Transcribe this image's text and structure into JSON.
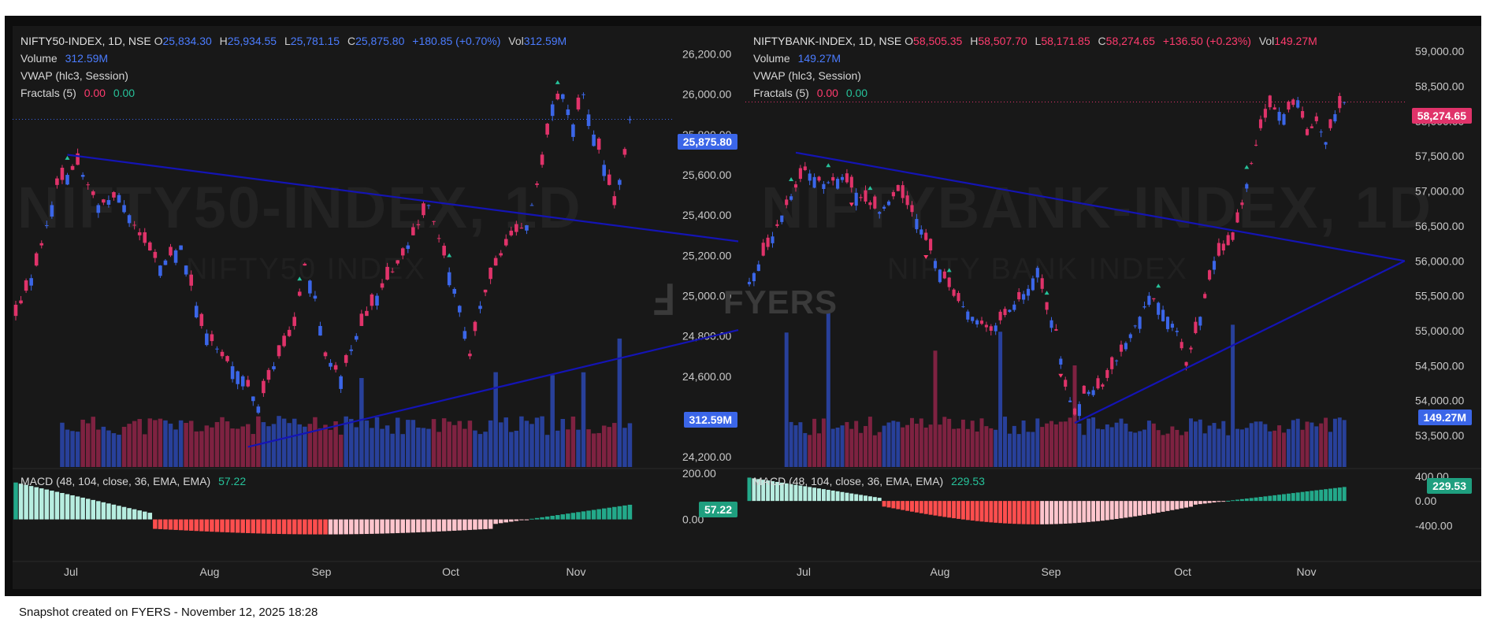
{
  "footer": "Snapshot created on FYERS - November 12, 2025 18:28",
  "logo_text": "FYERS",
  "colors": {
    "bg": "#181818",
    "up": "#3b66e8",
    "down": "#e0336a",
    "trend": "#1414b4",
    "macd_light": "#b7ede0",
    "macd_teal": "#23a98a",
    "macd_red": "#ff4e4e",
    "macd_pink": "#ffc5cd"
  },
  "left": {
    "symbol": "NIFTY50-INDEX, 1D, NSE",
    "watermark": "NIFTY50-INDEX, 1D",
    "watermark_sub": "NIFTY50 INDEX",
    "ohlc": {
      "O": "25,834.30",
      "H": "25,934.55",
      "L": "25,781.15",
      "C": "25,875.80",
      "change": "+180.85 (+0.70%)",
      "vol": "312.59M"
    },
    "volume_label": "Volume",
    "volume_value": "312.59M",
    "vwap_label": "VWAP (hlc3, Session)",
    "fractals_label": "Fractals (5)",
    "fractals_a": "0.00",
    "fractals_b": "0.00",
    "macd_label": "MACD (48, 104, close, 36, EMA, EMA)",
    "macd_value": "57.22",
    "price_badge": "25,875.80",
    "volume_badge": "312.59M",
    "macd_badge": "57.22"
  },
  "right": {
    "symbol": "NIFTYBANK-INDEX, 1D, NSE",
    "watermark": "NIFTYBANK-INDEX, 1D",
    "watermark_sub": "NIFTY BANK INDEX",
    "ohlc": {
      "O": "58,505.35",
      "H": "58,507.70",
      "L": "58,171.85",
      "C": "58,274.65",
      "change": "+136.50 (+0.23%)",
      "vol": "149.27M"
    },
    "volume_label": "Volume",
    "volume_value": "149.27M",
    "vwap_label": "VWAP (hlc3, Session)",
    "fractals_label": "Fractals (5)",
    "fractals_a": "0.00",
    "fractals_b": "0.00",
    "macd_label": "MACD (48, 104, close, 36, EMA, EMA)",
    "macd_value": "229.53",
    "price_badge": "58,274.65",
    "volume_badge": "149.27M",
    "macd_badge": "229.53"
  },
  "chart_data": [
    {
      "type": "candlestick",
      "name": "NIFTY50-INDEX",
      "x_ticks": [
        "Jul",
        "Aug",
        "Sep",
        "Oct",
        "Nov"
      ],
      "y_ticks": [
        "26,200.00",
        "26,000.00",
        "25,800.00",
        "25,600.00",
        "25,400.00",
        "25,200.00",
        "25,000.00",
        "24,800.00",
        "24,600.00",
        "24,200.00"
      ],
      "y_values": [
        26200,
        26000,
        25800,
        25600,
        25400,
        25200,
        25000,
        24800,
        24600,
        24200
      ],
      "ylim": [
        24150,
        26300
      ],
      "last_close": 25875.8,
      "close_path": [
        [
          0,
          24900
        ],
        [
          4,
          25150
        ],
        [
          8,
          25550
        ],
        [
          12,
          25650
        ],
        [
          16,
          25450
        ],
        [
          20,
          25500
        ],
        [
          24,
          25300
        ],
        [
          28,
          25150
        ],
        [
          32,
          25250
        ],
        [
          36,
          24850
        ],
        [
          40,
          24700
        ],
        [
          44,
          24600
        ],
        [
          47,
          24450
        ],
        [
          50,
          24650
        ],
        [
          54,
          24850
        ],
        [
          56,
          25150
        ],
        [
          58,
          25000
        ],
        [
          60,
          24700
        ],
        [
          63,
          24600
        ],
        [
          66,
          24800
        ],
        [
          70,
          25000
        ],
        [
          75,
          25200
        ],
        [
          80,
          25450
        ],
        [
          83,
          25200
        ],
        [
          86,
          24950
        ],
        [
          88,
          24700
        ],
        [
          90,
          24950
        ],
        [
          93,
          25150
        ],
        [
          96,
          25300
        ],
        [
          99,
          25350
        ],
        [
          102,
          25650
        ],
        [
          104,
          25950
        ],
        [
          106,
          26000
        ],
        [
          108,
          25850
        ],
        [
          110,
          26000
        ],
        [
          112,
          25800
        ],
        [
          114,
          25650
        ],
        [
          116,
          25450
        ],
        [
          118,
          25700
        ],
        [
          119,
          25876
        ]
      ],
      "fractal_up_idx": [
        10,
        55,
        84,
        105
      ],
      "trendlines": [
        {
          "from": [
            10,
            25700
          ],
          "to": [
            140,
            25270
          ]
        },
        {
          "from": [
            45,
            24250
          ],
          "to": [
            140,
            24830
          ]
        }
      ],
      "macd_ylim": [
        -80,
        200
      ],
      "macd_ticks": [
        "200.00",
        "0.00"
      ],
      "macd_tick_values": [
        200,
        0
      ],
      "macd_last": 57.22
    },
    {
      "type": "candlestick",
      "name": "NIFTYBANK-INDEX",
      "x_ticks": [
        "Jul",
        "Aug",
        "Sep",
        "Oct",
        "Nov"
      ],
      "y_ticks": [
        "59,000.00",
        "58,500.00",
        "58,000.00",
        "57,500.00",
        "57,000.00",
        "56,500.00",
        "56,000.00",
        "55,500.00",
        "55,000.00",
        "54,500.00",
        "54,000.00",
        "53,500.00"
      ],
      "y_values": [
        59000,
        58500,
        58000,
        57500,
        57000,
        56500,
        56000,
        55500,
        55000,
        54500,
        54000,
        53500
      ],
      "ylim": [
        53050,
        59250
      ],
      "last_close": 58274.65,
      "close_path": [
        [
          0,
          55700
        ],
        [
          4,
          56200
        ],
        [
          8,
          56800
        ],
        [
          12,
          57300
        ],
        [
          16,
          57100
        ],
        [
          20,
          57200
        ],
        [
          24,
          56900
        ],
        [
          28,
          56700
        ],
        [
          32,
          57000
        ],
        [
          36,
          56600
        ],
        [
          40,
          56000
        ],
        [
          44,
          55500
        ],
        [
          48,
          55200
        ],
        [
          52,
          55000
        ],
        [
          56,
          55300
        ],
        [
          60,
          55600
        ],
        [
          62,
          55900
        ],
        [
          64,
          55300
        ],
        [
          66,
          55000
        ],
        [
          68,
          54200
        ],
        [
          70,
          53800
        ],
        [
          72,
          54100
        ],
        [
          76,
          54200
        ],
        [
          80,
          54700
        ],
        [
          84,
          55200
        ],
        [
          86,
          55500
        ],
        [
          88,
          55400
        ],
        [
          92,
          55000
        ],
        [
          94,
          54500
        ],
        [
          97,
          55200
        ],
        [
          100,
          56000
        ],
        [
          104,
          56300
        ],
        [
          106,
          56800
        ],
        [
          108,
          57400
        ],
        [
          110,
          57900
        ],
        [
          112,
          58200
        ],
        [
          115,
          58100
        ],
        [
          118,
          58300
        ],
        [
          120,
          57800
        ],
        [
          122,
          58000
        ],
        [
          124,
          57700
        ],
        [
          126,
          58100
        ],
        [
          128,
          58274
        ]
      ],
      "fractal_up_idx": [
        9,
        17,
        26,
        43,
        64,
        88,
        107
      ],
      "fractal_down_idx": [
        22,
        38,
        67
      ],
      "trendlines": [
        {
          "from": [
            10,
            57550
          ],
          "to": [
            141,
            56000
          ]
        },
        {
          "from": [
            70,
            53680
          ],
          "to": [
            141,
            56000
          ]
        }
      ],
      "macd_ylim": [
        -600,
        450
      ],
      "macd_ticks": [
        "400.00",
        "0.00",
        "-400.00"
      ],
      "macd_tick_values": [
        400,
        0,
        -400
      ],
      "macd_last": 229.53
    }
  ]
}
